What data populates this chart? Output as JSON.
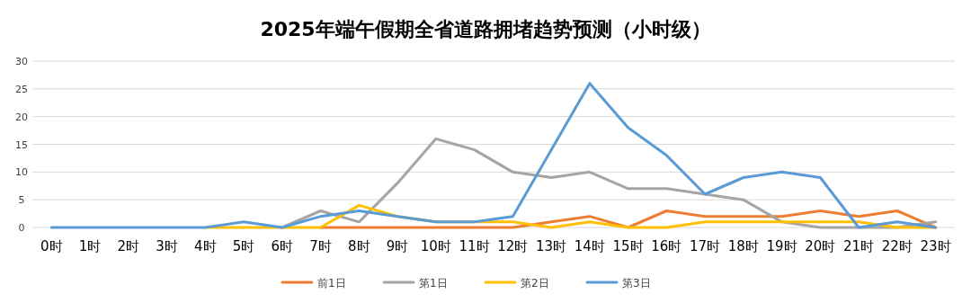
{
  "chart_data": {
    "type": "line",
    "title": "2025年端午假期全省道路拥堵趋势预测（小时级）",
    "categories": [
      "0时",
      "1时",
      "2时",
      "3时",
      "4时",
      "5时",
      "6时",
      "7时",
      "8时",
      "9时",
      "10时",
      "11时",
      "12时",
      "13时",
      "14时",
      "15时",
      "16时",
      "17时",
      "18时",
      "19时",
      "20时",
      "21时",
      "22时",
      "23时"
    ],
    "series": [
      {
        "name": "前1日",
        "color": "#ed7d31",
        "values": [
          null,
          null,
          null,
          null,
          null,
          null,
          null,
          0,
          0,
          0,
          0,
          0,
          0,
          1,
          2,
          0,
          3,
          2,
          2,
          2,
          3,
          2,
          3,
          0
        ]
      },
      {
        "name": "第1日",
        "color": "#a5a5a5",
        "values": [
          null,
          null,
          null,
          null,
          null,
          null,
          0,
          3,
          1,
          8,
          16,
          14,
          10,
          9,
          10,
          7,
          7,
          6,
          5,
          1,
          0,
          0,
          0,
          1
        ]
      },
      {
        "name": "第2日",
        "color": "#ffc000",
        "values": [
          null,
          null,
          null,
          null,
          0,
          0,
          0,
          0,
          4,
          2,
          1,
          1,
          1,
          0,
          1,
          0,
          0,
          1,
          1,
          1,
          1,
          1,
          0,
          0
        ]
      },
      {
        "name": "第3日",
        "color": "#5b9bd5",
        "values": [
          0,
          0,
          0,
          0,
          0,
          1,
          0,
          2,
          3,
          2,
          1,
          1,
          2,
          14,
          26,
          18,
          13,
          6,
          9,
          10,
          9,
          0,
          1,
          0
        ]
      }
    ],
    "ylim": [
      0,
      30
    ],
    "yticks": [
      0,
      5,
      10,
      15,
      20,
      25,
      30
    ],
    "grid": "y",
    "legend": "bottom",
    "marker": "none",
    "line_style": "solid"
  }
}
